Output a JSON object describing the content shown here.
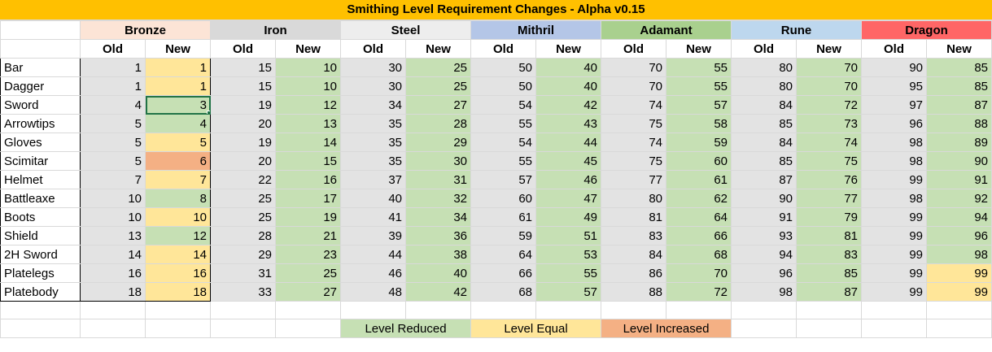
{
  "title": "Smithing Level Requirement Changes - Alpha v0.15",
  "old_label": "Old",
  "new_label": "New",
  "colors": {
    "title_bg": "#ffc000",
    "old_bg": "#e3e3e3",
    "reduced": "#c6e0b4",
    "equal": "#ffe699",
    "increased": "#f4b084"
  },
  "materials": [
    {
      "name": "Bronze",
      "color": "#fce4d6"
    },
    {
      "name": "Iron",
      "color": "#d9d9d9"
    },
    {
      "name": "Steel",
      "color": "#ededed"
    },
    {
      "name": "Mithril",
      "color": "#b4c6e7"
    },
    {
      "name": "Adamant",
      "color": "#a9d08e"
    },
    {
      "name": "Rune",
      "color": "#bdd7ee"
    },
    {
      "name": "Dragon",
      "color": "#ff6666"
    }
  ],
  "rows": [
    {
      "item": "Bar",
      "values": [
        [
          1,
          1
        ],
        [
          15,
          10
        ],
        [
          30,
          25
        ],
        [
          50,
          40
        ],
        [
          70,
          55
        ],
        [
          80,
          70
        ],
        [
          90,
          85
        ]
      ]
    },
    {
      "item": "Dagger",
      "values": [
        [
          1,
          1
        ],
        [
          15,
          10
        ],
        [
          30,
          25
        ],
        [
          50,
          40
        ],
        [
          70,
          55
        ],
        [
          80,
          70
        ],
        [
          95,
          85
        ]
      ]
    },
    {
      "item": "Sword",
      "values": [
        [
          4,
          3
        ],
        [
          19,
          12
        ],
        [
          34,
          27
        ],
        [
          54,
          42
        ],
        [
          74,
          57
        ],
        [
          84,
          72
        ],
        [
          97,
          87
        ]
      ]
    },
    {
      "item": "Arrowtips",
      "values": [
        [
          5,
          4
        ],
        [
          20,
          13
        ],
        [
          35,
          28
        ],
        [
          55,
          43
        ],
        [
          75,
          58
        ],
        [
          85,
          73
        ],
        [
          96,
          88
        ]
      ]
    },
    {
      "item": "Gloves",
      "values": [
        [
          5,
          5
        ],
        [
          19,
          14
        ],
        [
          35,
          29
        ],
        [
          54,
          44
        ],
        [
          74,
          59
        ],
        [
          84,
          74
        ],
        [
          98,
          89
        ]
      ]
    },
    {
      "item": "Scimitar",
      "values": [
        [
          5,
          6
        ],
        [
          20,
          15
        ],
        [
          35,
          30
        ],
        [
          55,
          45
        ],
        [
          75,
          60
        ],
        [
          85,
          75
        ],
        [
          98,
          90
        ]
      ]
    },
    {
      "item": "Helmet",
      "values": [
        [
          7,
          7
        ],
        [
          22,
          16
        ],
        [
          37,
          31
        ],
        [
          57,
          46
        ],
        [
          77,
          61
        ],
        [
          87,
          76
        ],
        [
          99,
          91
        ]
      ]
    },
    {
      "item": "Battleaxe",
      "values": [
        [
          10,
          8
        ],
        [
          25,
          17
        ],
        [
          40,
          32
        ],
        [
          60,
          47
        ],
        [
          80,
          62
        ],
        [
          90,
          77
        ],
        [
          98,
          92
        ]
      ]
    },
    {
      "item": "Boots",
      "values": [
        [
          10,
          10
        ],
        [
          25,
          19
        ],
        [
          41,
          34
        ],
        [
          61,
          49
        ],
        [
          81,
          64
        ],
        [
          91,
          79
        ],
        [
          99,
          94
        ]
      ]
    },
    {
      "item": "Shield",
      "values": [
        [
          13,
          12
        ],
        [
          28,
          21
        ],
        [
          39,
          36
        ],
        [
          59,
          51
        ],
        [
          83,
          66
        ],
        [
          93,
          81
        ],
        [
          99,
          96
        ]
      ]
    },
    {
      "item": "2H Sword",
      "values": [
        [
          14,
          14
        ],
        [
          29,
          23
        ],
        [
          44,
          38
        ],
        [
          64,
          53
        ],
        [
          84,
          68
        ],
        [
          94,
          83
        ],
        [
          99,
          98
        ]
      ]
    },
    {
      "item": "Platelegs",
      "values": [
        [
          16,
          16
        ],
        [
          31,
          25
        ],
        [
          46,
          40
        ],
        [
          66,
          55
        ],
        [
          86,
          70
        ],
        [
          96,
          85
        ],
        [
          99,
          99
        ]
      ]
    },
    {
      "item": "Platebody",
      "values": [
        [
          18,
          18
        ],
        [
          33,
          27
        ],
        [
          48,
          42
        ],
        [
          68,
          57
        ],
        [
          88,
          72
        ],
        [
          98,
          87
        ],
        [
          99,
          99
        ]
      ]
    }
  ],
  "legend": {
    "reduced": "Level Reduced",
    "equal": "Level Equal",
    "increased": "Level Increased"
  },
  "selected_cell": {
    "item": "Sword",
    "material": "Bronze",
    "column": "New"
  }
}
